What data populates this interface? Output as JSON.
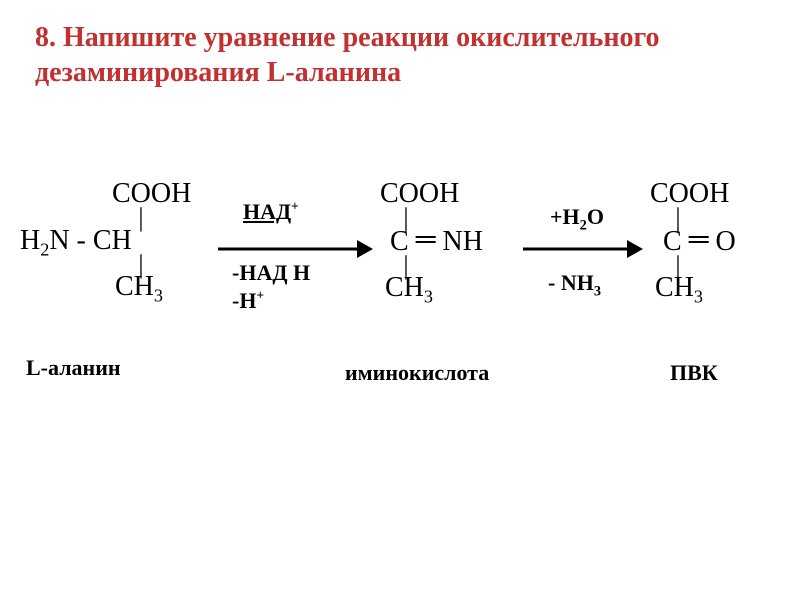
{
  "title_color": "#c23030",
  "arrow_color": "#000000",
  "text_color": "#000000",
  "title": "8. Напишите уравнение реакции окислительного дезаминирования L-аланина",
  "molecules": {
    "a": {
      "top": "COOH",
      "mid_left": "H",
      "mid_left_sub": "2",
      "mid_after": "N - CH",
      "bot": "CH",
      "bot_sub": "3",
      "label": "L-аланин"
    },
    "b": {
      "top": "COOH",
      "mid_c": "C ",
      "mid_dbl": "═",
      "mid_nh": " NH",
      "bot": "CH",
      "bot_sub": "3",
      "label": "иминокислота"
    },
    "c": {
      "top": "COOH",
      "mid_c": "C ",
      "mid_dbl": "═",
      "mid_o": " O",
      "bot": "CH",
      "bot_sub": "3",
      "label": "ПВК"
    }
  },
  "annotations": {
    "nadp_text": "НАД",
    "nadp_sup": "+",
    "nadh_text": "-НАД Н",
    "hplus_prefix": "-Н",
    "hplus_sup": "+",
    "h2o_prefix": "+H",
    "h2o_sub": "2",
    "h2o_rest": "O",
    "nh3_prefix": "- NH",
    "nh3_sub": "3"
  }
}
